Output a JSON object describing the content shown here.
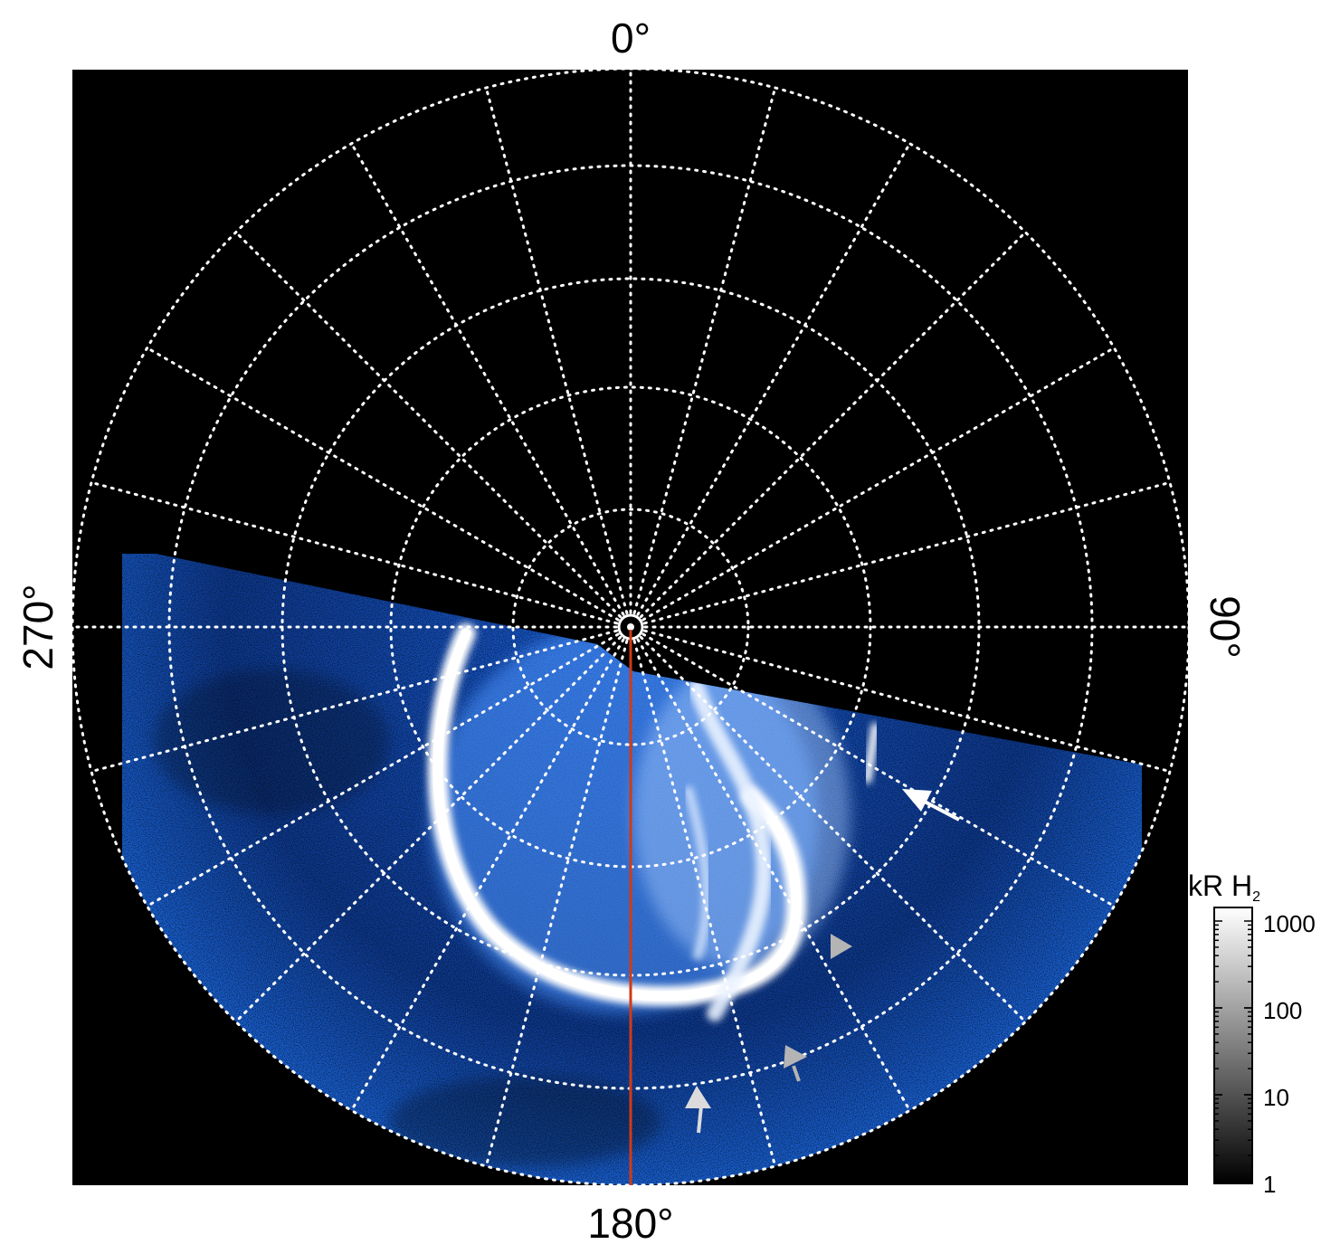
{
  "figure": {
    "top_label": "0°",
    "bottom_label": "180°",
    "left_label": "270°",
    "right_label": "90°"
  },
  "colorbar": {
    "title": "kR H",
    "title_subscript": "2",
    "scale": "log",
    "ticks": [
      "1000",
      "100",
      "10",
      "1"
    ],
    "colors": {
      "low": "#000000",
      "high": "#ffffff"
    }
  },
  "colors": {
    "background": "#000000",
    "aurora_blue": "#1560e0",
    "aurora_bright": "#ffffff",
    "grid": "#ffffff",
    "meridian_line": "#d23a14",
    "arrow_white": "#ffffff",
    "arrow_gray": "#b4b4b4"
  },
  "annotations": [
    {
      "kind": "arrow",
      "color": "white",
      "name": "white-arrow"
    },
    {
      "kind": "arrow",
      "color": "gray",
      "name": "gray-arrow"
    },
    {
      "kind": "arrowhead",
      "color": "gray",
      "name": "gray-arrowhead"
    }
  ]
}
